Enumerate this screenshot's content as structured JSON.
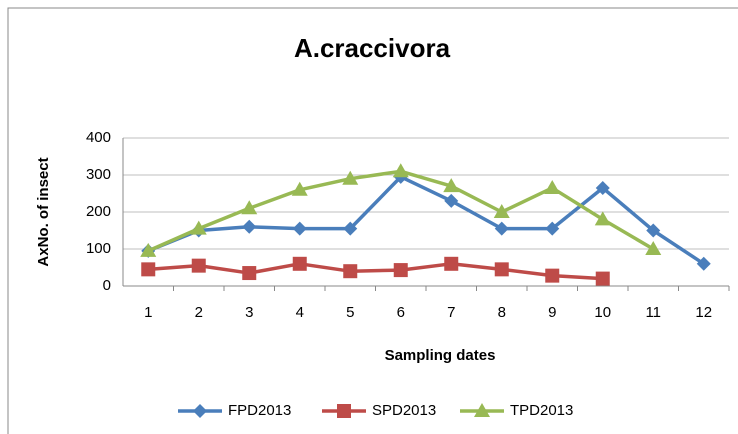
{
  "chart_data": {
    "type": "line",
    "title": "A.craccivora",
    "x_label": "Sampling dates",
    "y_label": "AxNo. of insect",
    "categories": [
      "1",
      "2",
      "3",
      "4",
      "5",
      "6",
      "7",
      "8",
      "9",
      "10",
      "11",
      "12"
    ],
    "series": [
      {
        "name": "FPD2013",
        "color": "#4a7ebb",
        "marker": "diamond",
        "values": [
          95,
          150,
          160,
          155,
          155,
          295,
          230,
          155,
          155,
          265,
          150,
          60
        ]
      },
      {
        "name": "SPD2013",
        "color": "#be4b48",
        "marker": "square",
        "values": [
          45,
          55,
          35,
          60,
          40,
          43,
          60,
          45,
          28,
          20,
          null,
          null
        ]
      },
      {
        "name": "TPD2013",
        "color": "#98b954",
        "marker": "triangle",
        "values": [
          95,
          155,
          210,
          260,
          290,
          310,
          270,
          200,
          265,
          180,
          100,
          null
        ]
      }
    ],
    "ylim": [
      0,
      400
    ],
    "yticks": [
      0,
      100,
      200,
      300,
      400
    ],
    "grid": true,
    "legend": "bottom"
  }
}
